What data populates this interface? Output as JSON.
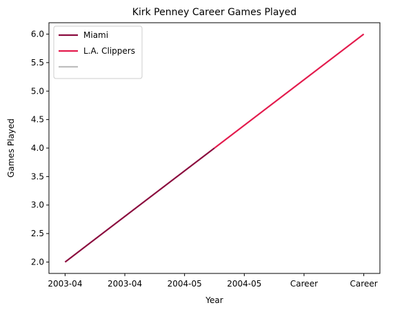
{
  "chart_data": {
    "type": "line",
    "title": "Kirk Penney Career Games Played",
    "xlabel": "Year",
    "ylabel": "Games Played",
    "x_tick_labels": [
      "2003-04",
      "2003-04",
      "2004-05",
      "2004-05",
      "Career",
      "Career"
    ],
    "y_ticks": [
      2.0,
      2.5,
      3.0,
      3.5,
      4.0,
      4.5,
      5.0,
      5.5,
      6.0
    ],
    "y_tick_labels": [
      "2.0",
      "2.5",
      "3.0",
      "3.5",
      "4.0",
      "4.5",
      "5.0",
      "5.5",
      "6.0"
    ],
    "xlim": [
      -0.27,
      5.27
    ],
    "ylim": [
      1.8,
      6.2
    ],
    "grid": false,
    "legend_position": "top-left",
    "series": [
      {
        "name": "Miami",
        "color": "#8b0a3e",
        "x": [
          0,
          2.5
        ],
        "y": [
          2,
          4
        ]
      },
      {
        "name": "L.A. Clippers",
        "color": "#e31b4d",
        "x": [
          2.5,
          5
        ],
        "y": [
          4,
          6
        ]
      },
      {
        "name": "",
        "color": "#bebebe",
        "x": [],
        "y": []
      }
    ]
  }
}
